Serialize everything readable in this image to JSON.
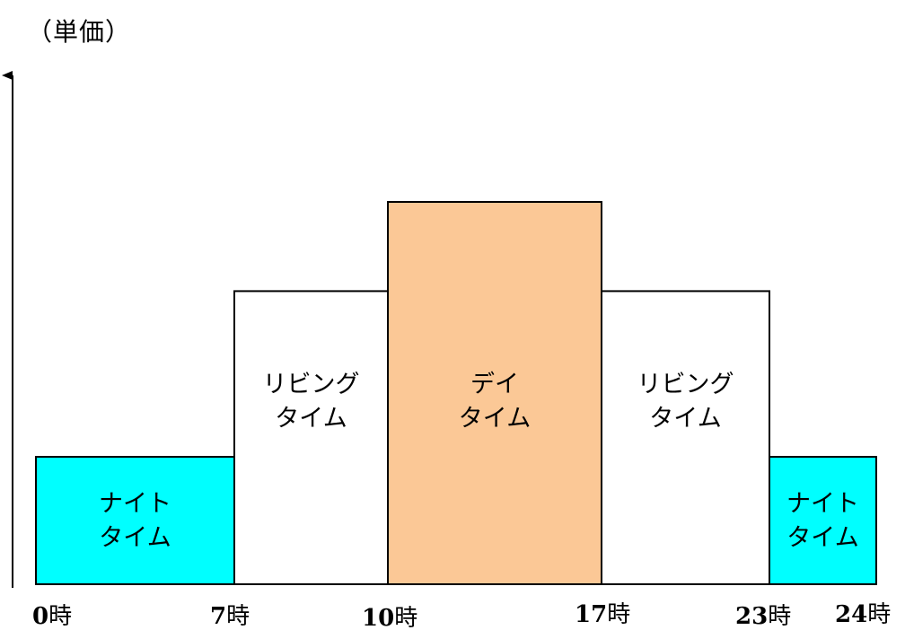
{
  "chart_data": {
    "type": "bar",
    "ylabel": "（単価）",
    "xlabel": "",
    "x_ticks": [
      {
        "value": 0,
        "num": "0",
        "unit": "時"
      },
      {
        "value": 7,
        "num": "7",
        "unit": "時"
      },
      {
        "value": 10,
        "num": "10",
        "unit": "時"
      },
      {
        "value": 17,
        "num": "17",
        "unit": "時"
      },
      {
        "value": 23,
        "num": "23",
        "unit": "時"
      },
      {
        "value": 24,
        "num": "24",
        "unit": "時"
      }
    ],
    "segments": [
      {
        "start": 0,
        "end": 7,
        "level": 1.0,
        "label_lines": [
          "ナイト",
          "タイム"
        ],
        "color": "#00ffff"
      },
      {
        "start": 7,
        "end": 10,
        "level": 2.3,
        "label_lines": [
          "リビング",
          "タイム"
        ],
        "color": "#ffffff"
      },
      {
        "start": 10,
        "end": 17,
        "level": 3.0,
        "label_lines": [
          "デイ",
          "タイム"
        ],
        "color": "#fbc896"
      },
      {
        "start": 17,
        "end": 23,
        "level": 2.3,
        "label_lines": [
          "リビング",
          "タイム"
        ],
        "color": "#ffffff"
      },
      {
        "start": 23,
        "end": 24,
        "level": 1.0,
        "label_lines": [
          "ナイト",
          "タイム"
        ],
        "color": "#00ffff"
      }
    ],
    "grid": false,
    "legend": "none"
  }
}
